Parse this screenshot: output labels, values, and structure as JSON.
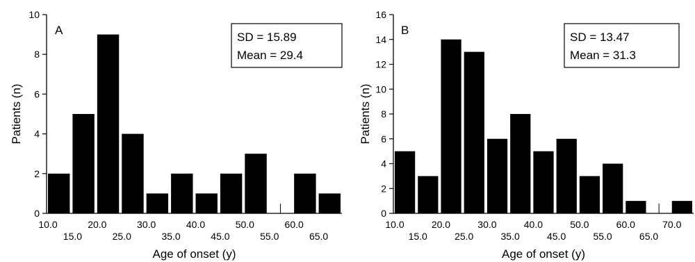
{
  "chart_data": [
    {
      "type": "bar",
      "panel_label": "A",
      "categories": [
        "10.0",
        "15.0",
        "20.0",
        "25.0",
        "30.0",
        "35.0",
        "40.0",
        "45.0",
        "50.0",
        "55.0",
        "60.0",
        "65.0"
      ],
      "values": [
        2,
        5,
        9,
        4,
        1,
        2,
        1,
        2,
        3,
        0,
        2,
        1
      ],
      "xlabel": "Age of onset (y)",
      "ylabel": "Patients (n)",
      "ylim": [
        0,
        10
      ],
      "yticks": [
        "0",
        "2",
        "4",
        "6",
        "8",
        "10"
      ],
      "stats": {
        "sd": "SD = 15.89",
        "mean": "Mean = 29.4"
      },
      "bar_color": "#000000"
    },
    {
      "type": "bar",
      "panel_label": "B",
      "categories": [
        "10.0",
        "15.0",
        "20.0",
        "25.0",
        "30.0",
        "35.0",
        "40.0",
        "45.0",
        "50.0",
        "55.0",
        "60.0",
        "65.0",
        "70.0"
      ],
      "values": [
        5,
        3,
        14,
        13,
        6,
        8,
        5,
        6,
        3,
        4,
        1,
        0,
        1
      ],
      "xlabel": "Age of onset (y)",
      "ylabel": "Patients (n)",
      "ylim": [
        0,
        16
      ],
      "yticks": [
        "0",
        "2",
        "4",
        "6",
        "8",
        "10",
        "12",
        "14",
        "16"
      ],
      "stats": {
        "sd": "SD = 13.47",
        "mean": "Mean = 31.3"
      },
      "bar_color": "#000000"
    }
  ]
}
